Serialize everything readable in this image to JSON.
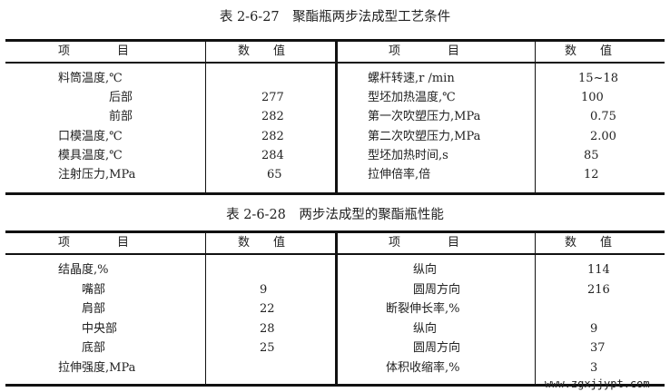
{
  "table1": {
    "title": "表 2-6-27　聚酯瓶两步法成型工艺条件",
    "headers": {
      "item": "项　　　　目",
      "value": "数　　值"
    },
    "left_rows": [
      {
        "label": "料筒温度,℃",
        "value": ""
      },
      {
        "label": "后部",
        "value": "277"
      },
      {
        "label": "前部",
        "value": "282"
      },
      {
        "label": "口模温度,℃",
        "value": "282"
      },
      {
        "label": "模具温度,℃",
        "value": "284"
      },
      {
        "label": "注射压力,MPa",
        "value": "65"
      }
    ],
    "right_rows": [
      {
        "label": "螺杆转速,r /min",
        "value": "15~18"
      },
      {
        "label": "型坯加热温度,℃",
        "value": "100"
      },
      {
        "label": "第一次吹塑压力,MPa",
        "value": "0.75"
      },
      {
        "label": "第二次吹塑压力,MPa",
        "value": "2.00"
      },
      {
        "label": "型坯加热时间,s",
        "value": "85"
      },
      {
        "label": "拉伸倍率,倍",
        "value": "12"
      }
    ]
  },
  "table2": {
    "title": "表 2-6-28　两步法成型的聚酯瓶性能",
    "headers": {
      "item": "项　　　　目",
      "value": "数　　值"
    },
    "left_rows": [
      {
        "label": "结晶度,%",
        "value": ""
      },
      {
        "label": "嘴部",
        "value": "9"
      },
      {
        "label": "肩部",
        "value": "22"
      },
      {
        "label": "中央部",
        "value": "28"
      },
      {
        "label": "底部",
        "value": "25"
      },
      {
        "label": "拉伸强度,MPa",
        "value": ""
      }
    ],
    "right_rows": [
      {
        "label": "纵向",
        "value": "114"
      },
      {
        "label": "圆周方向",
        "value": "216"
      },
      {
        "label": "断裂伸长率,%",
        "value": ""
      },
      {
        "label": "纵向",
        "value": "9"
      },
      {
        "label": "圆周方向",
        "value": "37"
      },
      {
        "label": "体积收缩率,%",
        "value": "3"
      }
    ]
  },
  "watermark": "www.zgxjjypt.com"
}
